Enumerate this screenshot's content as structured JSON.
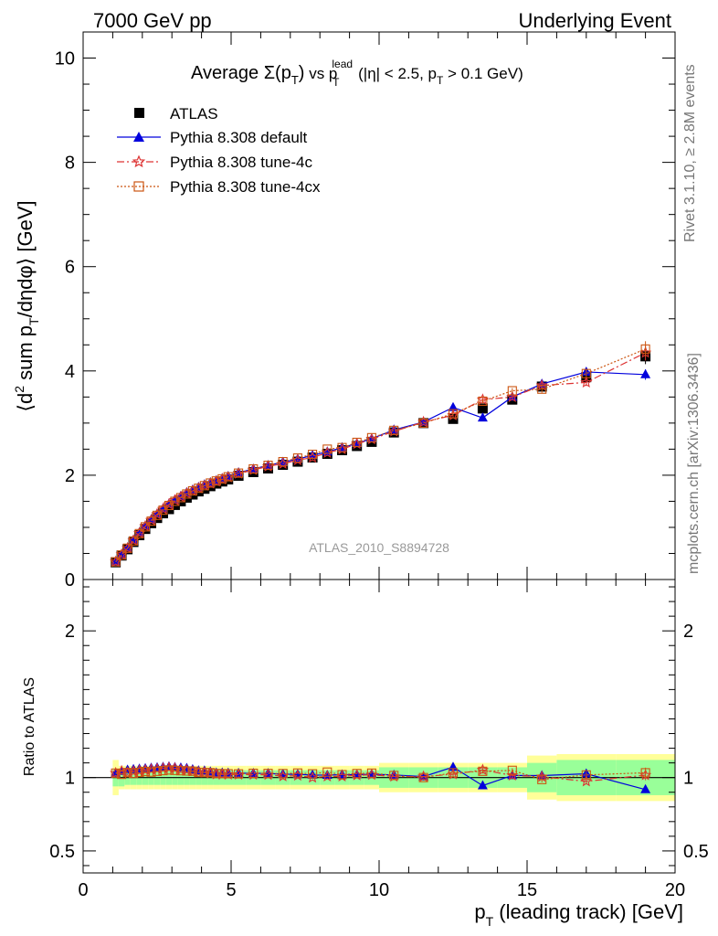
{
  "header": {
    "left": "7000 GeV pp",
    "right": "Underlying Event"
  },
  "side_labels": {
    "rivet": "Rivet 3.1.10, ≥ 2.8M events",
    "mcplots": "mcplots.cern.ch [arXiv:1306.3436]"
  },
  "watermark": "ATLAS_2010_S8894728",
  "title": {
    "prefix": "Average ",
    "sigma": "Σ(p",
    "sigma_sub": "T",
    "sigma_close": ")",
    "vs": " vs p",
    "vs_sup": "lead",
    "vs_sub": "T",
    "cuts": " (|η| < 2.5, p",
    "cuts_sub": "T",
    "cuts_tail": " > 0.1 GeV)"
  },
  "ylabel_main": {
    "a": "⟨d",
    "sup": "2",
    "b": " sum p",
    "sub": "T",
    "c": "/dηdφ⟩ [GeV]"
  },
  "ylabel_ratio": "Ratio to ATLAS",
  "xlabel": {
    "a": "p",
    "sub": "T",
    "b": " (leading track) [GeV]"
  },
  "legend": {
    "atlas": "ATLAS",
    "default": "Pythia 8.308 default",
    "tune4c": "Pythia 8.308 tune-4c",
    "tune4cx": "Pythia 8.308 tune-4cx"
  },
  "colors": {
    "atlas": "#000000",
    "default": "#0000dd",
    "tune4c": "#dd3333",
    "tune4cx": "#cc5511",
    "band_inner": "#99ff99",
    "band_outer": "#ffff99"
  },
  "chart_data": {
    "type": "scatter",
    "x_range": [
      0,
      20
    ],
    "main_ylim": [
      0,
      10.5
    ],
    "ratio_ylim": [
      0.35,
      2.35
    ],
    "main_yticks": [
      "0",
      "2",
      "4",
      "6",
      "8",
      "10"
    ],
    "ratio_yticks": [
      "0.5",
      "1",
      "2"
    ],
    "xticks": [
      "0",
      "5",
      "10",
      "15",
      "20"
    ],
    "x": [
      1.1,
      1.3,
      1.5,
      1.7,
      1.9,
      2.1,
      2.3,
      2.5,
      2.7,
      2.9,
      3.1,
      3.3,
      3.5,
      3.7,
      3.9,
      4.1,
      4.3,
      4.5,
      4.7,
      4.9,
      5.25,
      5.75,
      6.25,
      6.75,
      7.25,
      7.75,
      8.25,
      8.75,
      9.25,
      9.75,
      10.5,
      11.5,
      12.5,
      13.5,
      14.5,
      15.5,
      17.0,
      19.0
    ],
    "x_err": [
      0.1,
      0.1,
      0.1,
      0.1,
      0.1,
      0.1,
      0.1,
      0.1,
      0.1,
      0.1,
      0.1,
      0.1,
      0.1,
      0.1,
      0.1,
      0.1,
      0.1,
      0.1,
      0.1,
      0.1,
      0.25,
      0.25,
      0.25,
      0.25,
      0.25,
      0.25,
      0.25,
      0.25,
      0.25,
      0.25,
      0.5,
      0.5,
      0.5,
      0.5,
      0.5,
      0.5,
      1.0,
      1.0
    ],
    "atlas": [
      0.33,
      0.46,
      0.58,
      0.72,
      0.85,
      0.97,
      1.08,
      1.18,
      1.27,
      1.35,
      1.43,
      1.5,
      1.57,
      1.63,
      1.69,
      1.74,
      1.79,
      1.84,
      1.88,
      1.92,
      1.99,
      2.06,
      2.13,
      2.2,
      2.26,
      2.34,
      2.41,
      2.48,
      2.56,
      2.64,
      2.82,
      3.0,
      3.08,
      3.28,
      3.45,
      3.7,
      3.88,
      4.28
    ],
    "atlas_err": [
      0.01,
      0.01,
      0.01,
      0.01,
      0.01,
      0.01,
      0.01,
      0.01,
      0.01,
      0.01,
      0.01,
      0.01,
      0.01,
      0.01,
      0.02,
      0.02,
      0.02,
      0.02,
      0.02,
      0.02,
      0.02,
      0.02,
      0.02,
      0.03,
      0.03,
      0.03,
      0.03,
      0.04,
      0.04,
      0.04,
      0.04,
      0.05,
      0.06,
      0.07,
      0.08,
      0.09,
      0.1,
      0.15
    ],
    "stat_band": [
      0.06,
      0.06,
      0.05,
      0.05,
      0.05,
      0.05,
      0.05,
      0.05,
      0.05,
      0.05,
      0.05,
      0.05,
      0.05,
      0.05,
      0.05,
      0.05,
      0.05,
      0.05,
      0.05,
      0.05,
      0.05,
      0.05,
      0.05,
      0.05,
      0.05,
      0.05,
      0.05,
      0.05,
      0.05,
      0.05,
      0.07,
      0.07,
      0.07,
      0.07,
      0.07,
      0.1,
      0.12,
      0.12
    ],
    "total_band": [
      0.12,
      0.08,
      0.08,
      0.08,
      0.08,
      0.08,
      0.08,
      0.08,
      0.08,
      0.08,
      0.08,
      0.08,
      0.08,
      0.08,
      0.08,
      0.08,
      0.08,
      0.08,
      0.08,
      0.08,
      0.08,
      0.08,
      0.08,
      0.08,
      0.08,
      0.08,
      0.08,
      0.08,
      0.08,
      0.08,
      0.1,
      0.1,
      0.1,
      0.1,
      0.1,
      0.15,
      0.16,
      0.16
    ],
    "series": [
      {
        "name": "Pythia 8.308 default",
        "y": [
          0.34,
          0.48,
          0.61,
          0.76,
          0.9,
          1.03,
          1.15,
          1.26,
          1.36,
          1.45,
          1.53,
          1.6,
          1.67,
          1.72,
          1.77,
          1.82,
          1.86,
          1.9,
          1.94,
          1.98,
          2.05,
          2.12,
          2.19,
          2.25,
          2.31,
          2.38,
          2.45,
          2.53,
          2.61,
          2.7,
          2.87,
          3.02,
          3.3,
          3.1,
          3.5,
          3.75,
          3.98,
          3.93
        ],
        "y_err": [
          0.01,
          0.01,
          0.01,
          0.01,
          0.01,
          0.01,
          0.01,
          0.01,
          0.01,
          0.01,
          0.01,
          0.01,
          0.01,
          0.01,
          0.01,
          0.01,
          0.01,
          0.01,
          0.01,
          0.01,
          0.01,
          0.01,
          0.01,
          0.01,
          0.01,
          0.02,
          0.02,
          0.02,
          0.02,
          0.02,
          0.02,
          0.03,
          0.04,
          0.05,
          0.05,
          0.07,
          0.07,
          0.1
        ]
      },
      {
        "name": "Pythia 8.308 tune-4c",
        "y": [
          0.34,
          0.48,
          0.6,
          0.75,
          0.89,
          1.02,
          1.14,
          1.25,
          1.35,
          1.44,
          1.52,
          1.58,
          1.65,
          1.7,
          1.75,
          1.8,
          1.84,
          1.88,
          1.92,
          1.96,
          2.03,
          2.1,
          2.17,
          2.22,
          2.29,
          2.34,
          2.43,
          2.5,
          2.6,
          2.69,
          2.84,
          3.02,
          3.15,
          3.45,
          3.5,
          3.72,
          3.78,
          4.35
        ],
        "y_err": [
          0.01,
          0.01,
          0.01,
          0.01,
          0.01,
          0.01,
          0.01,
          0.01,
          0.01,
          0.01,
          0.01,
          0.01,
          0.01,
          0.01,
          0.01,
          0.01,
          0.01,
          0.01,
          0.01,
          0.01,
          0.01,
          0.01,
          0.01,
          0.01,
          0.01,
          0.02,
          0.02,
          0.02,
          0.02,
          0.02,
          0.02,
          0.03,
          0.04,
          0.05,
          0.05,
          0.07,
          0.07,
          0.15
        ]
      },
      {
        "name": "Pythia 8.308 tune-4cx",
        "y": [
          0.34,
          0.47,
          0.6,
          0.74,
          0.88,
          1.01,
          1.12,
          1.23,
          1.33,
          1.42,
          1.5,
          1.57,
          1.64,
          1.7,
          1.75,
          1.8,
          1.85,
          1.89,
          1.93,
          1.97,
          2.04,
          2.12,
          2.19,
          2.26,
          2.33,
          2.4,
          2.5,
          2.53,
          2.63,
          2.72,
          2.86,
          3.0,
          3.18,
          3.42,
          3.62,
          3.65,
          3.95,
          4.42
        ],
        "y_err": [
          0.01,
          0.01,
          0.01,
          0.01,
          0.01,
          0.01,
          0.01,
          0.01,
          0.01,
          0.01,
          0.01,
          0.01,
          0.01,
          0.01,
          0.01,
          0.01,
          0.01,
          0.01,
          0.01,
          0.01,
          0.01,
          0.01,
          0.01,
          0.01,
          0.01,
          0.02,
          0.02,
          0.02,
          0.02,
          0.02,
          0.02,
          0.03,
          0.04,
          0.05,
          0.05,
          0.07,
          0.07,
          0.15
        ]
      }
    ]
  }
}
